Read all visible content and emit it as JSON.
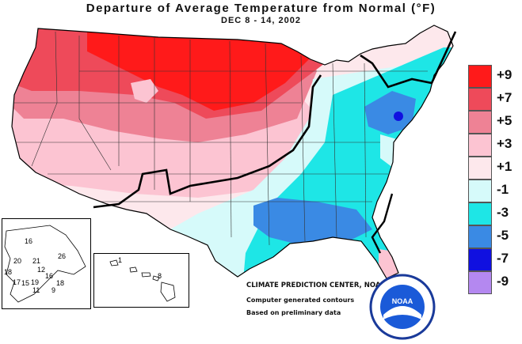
{
  "header": {
    "title": "Departure of Average Temperature from Normal (°F)",
    "subtitle": "DEC 8 - 14, 2002"
  },
  "legend": {
    "items": [
      {
        "label": "+9",
        "color": "#ff1a1a"
      },
      {
        "label": "+7",
        "color": "#ee4a5a"
      },
      {
        "label": "+5",
        "color": "#ee8295"
      },
      {
        "label": "+3",
        "color": "#fcc4d2"
      },
      {
        "label": "+1",
        "color": "#fde8ec"
      },
      {
        "label": "-1",
        "color": "#d6fafa"
      },
      {
        "label": "-3",
        "color": "#1ee6e6"
      },
      {
        "label": "-5",
        "color": "#3a8ae4"
      },
      {
        "label": "-7",
        "color": "#1010e0"
      },
      {
        "label": "-9",
        "color": "#b488f0"
      }
    ]
  },
  "credits": {
    "org": "CLIMATE PREDICTION CENTER, NOAA",
    "line1": "Computer generated contours",
    "line2": "Based on preliminary data",
    "logo_text": "NOAA"
  },
  "alaska": {
    "numbers": [
      "16",
      "20",
      "21",
      "26",
      "18",
      "12",
      "16",
      "17",
      "19",
      "15",
      "18",
      "11",
      "9"
    ]
  },
  "hawaii": {
    "numbers": [
      "1",
      "8"
    ]
  }
}
